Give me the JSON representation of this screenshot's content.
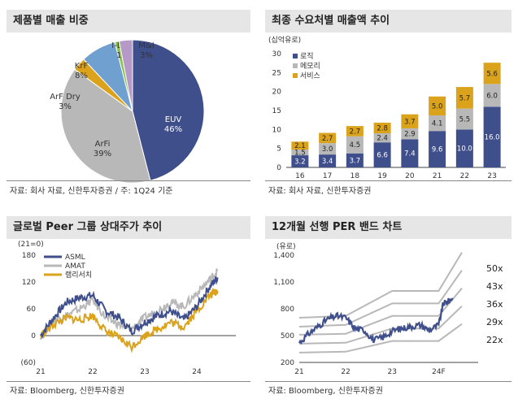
{
  "panels": {
    "p1": {
      "title": "제품별 매출 비중",
      "source": "자료: 회사 자료, 신한투자증권 / 주: 1Q24 기준"
    },
    "p2": {
      "title": "최종 수요처별 매출액 추이",
      "unit": "(십억유로)",
      "source": "자료: 회사 자료, 신한투자증권"
    },
    "p3": {
      "title": "글로벌 Peer 그룹 상대주가 추이",
      "unit": "(21=0)",
      "source": "자료: Bloomberg, 신한투자증권"
    },
    "p4": {
      "title": "12개월 선행 PER 밴드 차트",
      "unit": "(유로)",
      "source": "자료: Bloomberg, 신한투자증권"
    }
  },
  "chart_data": [
    {
      "type": "pie",
      "title": "제품별 매출 비중",
      "slices": [
        {
          "name": "EUV",
          "label": "EUV\n46%",
          "value": 46,
          "color": "#3f4f8c"
        },
        {
          "name": "ArFi",
          "label": "ArFi\n39%",
          "value": 39,
          "color": "#b8b8b8"
        },
        {
          "name": "ArF Dry",
          "label": "ArF Dry\n3%",
          "value": 3,
          "color": "#dba31c"
        },
        {
          "name": "KrF",
          "label": "KrF\n8%",
          "value": 8,
          "color": "#6fa0cf"
        },
        {
          "name": "I-Line",
          "label": "I-Line\n1%",
          "value": 1,
          "color": "#8fc14f"
        },
        {
          "name": "M&I",
          "label": "M&I\n3%",
          "value": 3,
          "color": "#b59ac8"
        }
      ]
    },
    {
      "type": "bar",
      "stacked": true,
      "title": "최종 수요처별 매출액 추이",
      "ylabel": "(십억유로)",
      "ylim": [
        0,
        30
      ],
      "yticks": [
        0,
        5,
        10,
        15,
        20,
        25,
        30
      ],
      "categories": [
        "16",
        "17",
        "18",
        "19",
        "20",
        "21",
        "22",
        "23"
      ],
      "series": [
        {
          "name": "로직",
          "color": "#3f4f8c",
          "values": [
            3.2,
            3.4,
            3.7,
            6.6,
            7.4,
            9.6,
            10.0,
            16.0
          ],
          "labels": [
            "3.2",
            "3.4",
            "3.7",
            "6.6",
            "7.4",
            "9.6",
            "10.0",
            "16.0"
          ]
        },
        {
          "name": "메모리",
          "color": "#b8b8b8",
          "values": [
            1.5,
            3.0,
            4.5,
            2.4,
            2.9,
            4.1,
            5.5,
            6.0
          ],
          "labels": [
            "1.5",
            "3.0",
            "4.5",
            "2.4",
            "2.9",
            "4.1",
            "5.5",
            "6.0"
          ]
        },
        {
          "name": "서비스",
          "color": "#dba31c",
          "values": [
            2.1,
            2.7,
            2.7,
            2.8,
            3.7,
            5.0,
            5.7,
            5.6
          ],
          "labels": [
            "2.1",
            "2.7",
            "2.7",
            "2.8",
            "3.7",
            "5.0",
            "5.7",
            "5.6"
          ]
        }
      ],
      "legend": "top-left"
    },
    {
      "type": "line",
      "title": "글로벌 Peer 그룹 상대주가 추이",
      "ylabel": "(21=0)",
      "ylim": [
        -60,
        180
      ],
      "yticks": [
        -60,
        0,
        60,
        120,
        180
      ],
      "ytick_labels": [
        "(60)",
        "0",
        "60",
        "120",
        "180"
      ],
      "xticks": [
        "21",
        "22",
        "23",
        "24"
      ],
      "x": [
        2021.0,
        2021.25,
        2021.5,
        2021.75,
        2022.0,
        2022.25,
        2022.5,
        2022.75,
        2023.0,
        2023.25,
        2023.5,
        2023.75,
        2024.0,
        2024.25,
        2024.4
      ],
      "series": [
        {
          "name": "ASML",
          "color": "#3f4f8c",
          "values": [
            0,
            40,
            75,
            85,
            90,
            55,
            40,
            10,
            30,
            45,
            55,
            35,
            65,
            110,
            130
          ]
        },
        {
          "name": "AMAT",
          "color": "#b8b8b8",
          "values": [
            0,
            35,
            45,
            60,
            80,
            40,
            25,
            15,
            40,
            55,
            75,
            65,
            95,
            125,
            145
          ]
        },
        {
          "name": "램리서치",
          "color": "#dba31c",
          "values": [
            0,
            25,
            40,
            35,
            45,
            10,
            -5,
            -25,
            0,
            15,
            30,
            20,
            55,
            90,
            100
          ]
        }
      ],
      "legend": "top-left"
    },
    {
      "type": "line",
      "title": "12개월 선행 PER 밴드 차트",
      "ylabel": "(유로)",
      "ylim": [
        200,
        1400
      ],
      "yticks": [
        200,
        500,
        800,
        1100,
        1400
      ],
      "ytick_labels": [
        "200",
        "500",
        "800",
        "1,100",
        "1,400"
      ],
      "xticks": [
        "21",
        "22",
        "23",
        "24F"
      ],
      "x": [
        2021.0,
        2022.0,
        2023.0,
        2024.0,
        2024.5
      ],
      "bands": [
        {
          "name": "50x",
          "values": [
            700,
            720,
            1000,
            1000,
            1430
          ]
        },
        {
          "name": "43x",
          "values": [
            600,
            620,
            860,
            860,
            1230
          ]
        },
        {
          "name": "36x",
          "values": [
            510,
            520,
            720,
            720,
            1030
          ]
        },
        {
          "name": "29x",
          "values": [
            410,
            420,
            580,
            580,
            830
          ]
        },
        {
          "name": "22x",
          "values": [
            310,
            320,
            440,
            440,
            630
          ]
        }
      ],
      "price": {
        "name": "price",
        "x": [
          2021.0,
          2021.2,
          2021.4,
          2021.6,
          2021.8,
          2022.0,
          2022.2,
          2022.4,
          2022.6,
          2022.8,
          2023.0,
          2023.2,
          2023.4,
          2023.6,
          2023.8,
          2024.0,
          2024.1,
          2024.2,
          2024.3
        ],
        "values": [
          420,
          520,
          600,
          680,
          720,
          700,
          580,
          560,
          450,
          480,
          550,
          580,
          600,
          620,
          560,
          620,
          860,
          880,
          920
        ]
      }
    }
  ]
}
